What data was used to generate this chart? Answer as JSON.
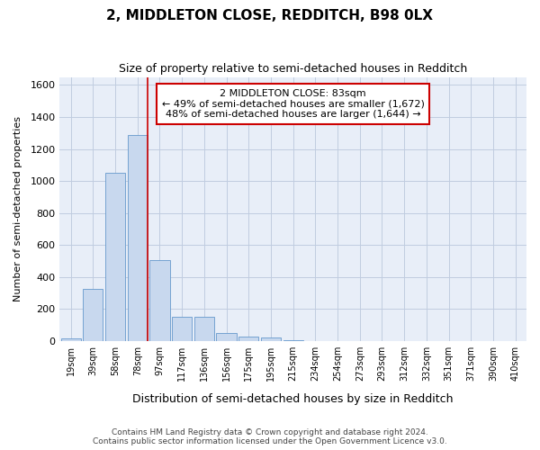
{
  "title": "2, MIDDLETON CLOSE, REDDITCH, B98 0LX",
  "subtitle": "Size of property relative to semi-detached houses in Redditch",
  "xlabel": "Distribution of semi-detached houses by size in Redditch",
  "ylabel": "Number of semi-detached properties",
  "footer_line1": "Contains HM Land Registry data © Crown copyright and database right 2024.",
  "footer_line2": "Contains public sector information licensed under the Open Government Licence v3.0.",
  "categories": [
    "19sqm",
    "39sqm",
    "58sqm",
    "78sqm",
    "97sqm",
    "117sqm",
    "136sqm",
    "156sqm",
    "175sqm",
    "195sqm",
    "215sqm",
    "234sqm",
    "254sqm",
    "273sqm",
    "293sqm",
    "312sqm",
    "332sqm",
    "351sqm",
    "371sqm",
    "390sqm",
    "410sqm"
  ],
  "values": [
    15,
    325,
    1050,
    1290,
    505,
    150,
    150,
    50,
    25,
    20,
    5,
    0,
    0,
    0,
    0,
    0,
    0,
    0,
    0,
    0,
    0
  ],
  "bar_color": "#c8d8ee",
  "bar_edge_color": "#6699cc",
  "ylim": [
    0,
    1650
  ],
  "yticks": [
    0,
    200,
    400,
    600,
    800,
    1000,
    1200,
    1400,
    1600
  ],
  "subject_line_index": 3,
  "subject_line_color": "#cc0000",
  "annotation_text": "2 MIDDLETON CLOSE: 83sqm\n← 49% of semi-detached houses are smaller (1,672)\n48% of semi-detached houses are larger (1,644) →",
  "box_facecolor": "white",
  "box_edgecolor": "#cc0000",
  "plot_bg_color": "#e8eef8",
  "fig_bg_color": "#ffffff",
  "grid_color": "#c0cce0"
}
